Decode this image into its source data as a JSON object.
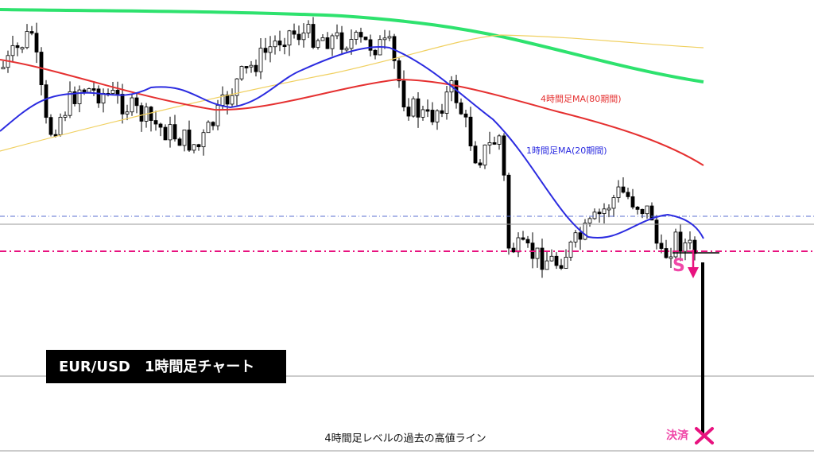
{
  "title": "EUR/USD　1時間足チャート",
  "annotations": {
    "ma80": "4時間足MA(80期間)",
    "ma20": "1時間足MA(20期間)",
    "entry": "S",
    "exit": "決済",
    "level_line": "4時間足レベルの過去の高値ライン"
  }
}
